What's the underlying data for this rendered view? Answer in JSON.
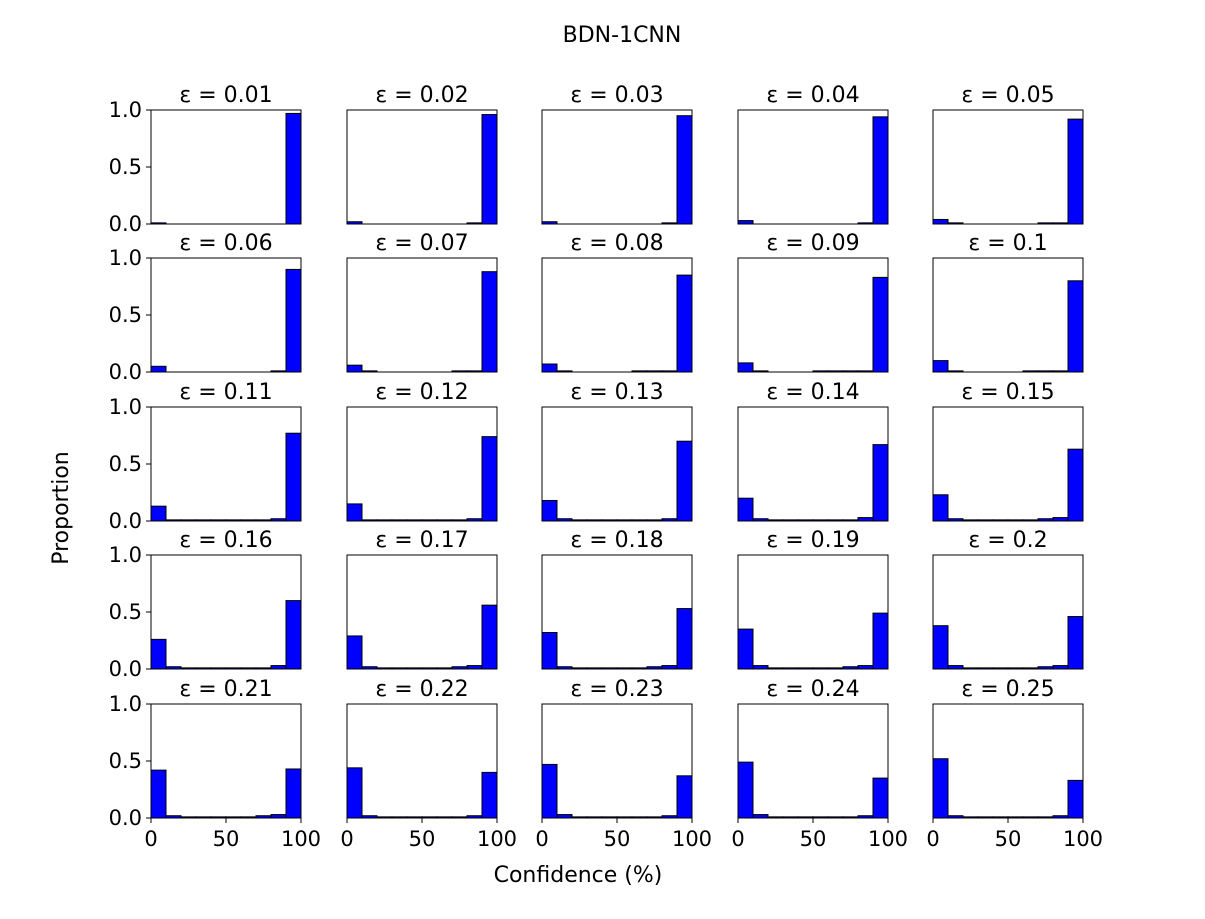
{
  "suptitle": "BDN-1CNN",
  "xlabel": "Confidence (%)",
  "ylabel": "Proportion",
  "colors": {
    "bar": "#0000ff",
    "edge": "#000000",
    "axes": "#000000"
  },
  "chart_data": {
    "type": "bar",
    "layout": "5x5 grid of histograms",
    "x_range": [
      0,
      100
    ],
    "ylim": [
      0,
      1.0
    ],
    "x_ticks": [
      "0",
      "50",
      "100"
    ],
    "y_ticks": [
      "0.0",
      "0.5",
      "1.0"
    ],
    "bin_edges": [
      0,
      10,
      20,
      30,
      40,
      50,
      60,
      70,
      80,
      90,
      100
    ],
    "grid": false,
    "panels": [
      {
        "title": "ε = 0.01",
        "values": [
          0.01,
          0.0,
          0.0,
          0.0,
          0.0,
          0.0,
          0.0,
          0.0,
          0.0,
          0.97
        ]
      },
      {
        "title": "ε = 0.02",
        "values": [
          0.02,
          0.0,
          0.0,
          0.0,
          0.0,
          0.0,
          0.0,
          0.0,
          0.01,
          0.96
        ]
      },
      {
        "title": "ε = 0.03",
        "values": [
          0.02,
          0.0,
          0.0,
          0.0,
          0.0,
          0.0,
          0.0,
          0.0,
          0.01,
          0.95
        ]
      },
      {
        "title": "ε = 0.04",
        "values": [
          0.03,
          0.0,
          0.0,
          0.0,
          0.0,
          0.0,
          0.0,
          0.0,
          0.01,
          0.94
        ]
      },
      {
        "title": "ε = 0.05",
        "values": [
          0.04,
          0.01,
          0.0,
          0.0,
          0.0,
          0.0,
          0.0,
          0.01,
          0.01,
          0.92
        ]
      },
      {
        "title": "ε = 0.06",
        "values": [
          0.05,
          0.0,
          0.0,
          0.0,
          0.0,
          0.0,
          0.0,
          0.0,
          0.01,
          0.9
        ]
      },
      {
        "title": "ε = 0.07",
        "values": [
          0.06,
          0.01,
          0.0,
          0.0,
          0.0,
          0.0,
          0.0,
          0.01,
          0.01,
          0.88
        ]
      },
      {
        "title": "ε = 0.08",
        "values": [
          0.07,
          0.01,
          0.0,
          0.0,
          0.0,
          0.0,
          0.01,
          0.01,
          0.01,
          0.85
        ]
      },
      {
        "title": "ε = 0.09",
        "values": [
          0.08,
          0.01,
          0.0,
          0.0,
          0.0,
          0.01,
          0.01,
          0.01,
          0.01,
          0.83
        ]
      },
      {
        "title": "ε = 0.1",
        "values": [
          0.1,
          0.01,
          0.0,
          0.0,
          0.0,
          0.0,
          0.01,
          0.01,
          0.01,
          0.8
        ]
      },
      {
        "title": "ε = 0.11",
        "values": [
          0.13,
          0.01,
          0.01,
          0.01,
          0.01,
          0.01,
          0.01,
          0.01,
          0.02,
          0.77
        ]
      },
      {
        "title": "ε = 0.12",
        "values": [
          0.15,
          0.01,
          0.01,
          0.01,
          0.01,
          0.01,
          0.01,
          0.01,
          0.02,
          0.74
        ]
      },
      {
        "title": "ε = 0.13",
        "values": [
          0.18,
          0.02,
          0.01,
          0.01,
          0.01,
          0.01,
          0.01,
          0.01,
          0.02,
          0.7
        ]
      },
      {
        "title": "ε = 0.14",
        "values": [
          0.2,
          0.02,
          0.01,
          0.01,
          0.01,
          0.01,
          0.01,
          0.01,
          0.03,
          0.67
        ]
      },
      {
        "title": "ε = 0.15",
        "values": [
          0.23,
          0.02,
          0.01,
          0.01,
          0.01,
          0.01,
          0.01,
          0.02,
          0.03,
          0.63
        ]
      },
      {
        "title": "ε = 0.16",
        "values": [
          0.26,
          0.02,
          0.01,
          0.01,
          0.01,
          0.01,
          0.01,
          0.01,
          0.03,
          0.6
        ]
      },
      {
        "title": "ε = 0.17",
        "values": [
          0.29,
          0.02,
          0.01,
          0.01,
          0.01,
          0.01,
          0.01,
          0.02,
          0.03,
          0.56
        ]
      },
      {
        "title": "ε = 0.18",
        "values": [
          0.32,
          0.02,
          0.01,
          0.01,
          0.01,
          0.01,
          0.01,
          0.02,
          0.03,
          0.53
        ]
      },
      {
        "title": "ε = 0.19",
        "values": [
          0.35,
          0.03,
          0.01,
          0.01,
          0.01,
          0.01,
          0.01,
          0.02,
          0.03,
          0.49
        ]
      },
      {
        "title": "ε = 0.2",
        "values": [
          0.38,
          0.03,
          0.01,
          0.01,
          0.01,
          0.01,
          0.01,
          0.02,
          0.03,
          0.46
        ]
      },
      {
        "title": "ε = 0.21",
        "values": [
          0.42,
          0.02,
          0.01,
          0.01,
          0.01,
          0.01,
          0.01,
          0.02,
          0.03,
          0.43
        ]
      },
      {
        "title": "ε = 0.22",
        "values": [
          0.44,
          0.02,
          0.01,
          0.01,
          0.01,
          0.01,
          0.01,
          0.01,
          0.02,
          0.4
        ]
      },
      {
        "title": "ε = 0.23",
        "values": [
          0.47,
          0.03,
          0.01,
          0.01,
          0.01,
          0.01,
          0.01,
          0.01,
          0.02,
          0.37
        ]
      },
      {
        "title": "ε = 0.24",
        "values": [
          0.49,
          0.03,
          0.01,
          0.01,
          0.01,
          0.01,
          0.01,
          0.01,
          0.02,
          0.35
        ]
      },
      {
        "title": "ε = 0.25",
        "values": [
          0.52,
          0.02,
          0.01,
          0.01,
          0.01,
          0.01,
          0.01,
          0.01,
          0.02,
          0.33
        ]
      }
    ]
  }
}
